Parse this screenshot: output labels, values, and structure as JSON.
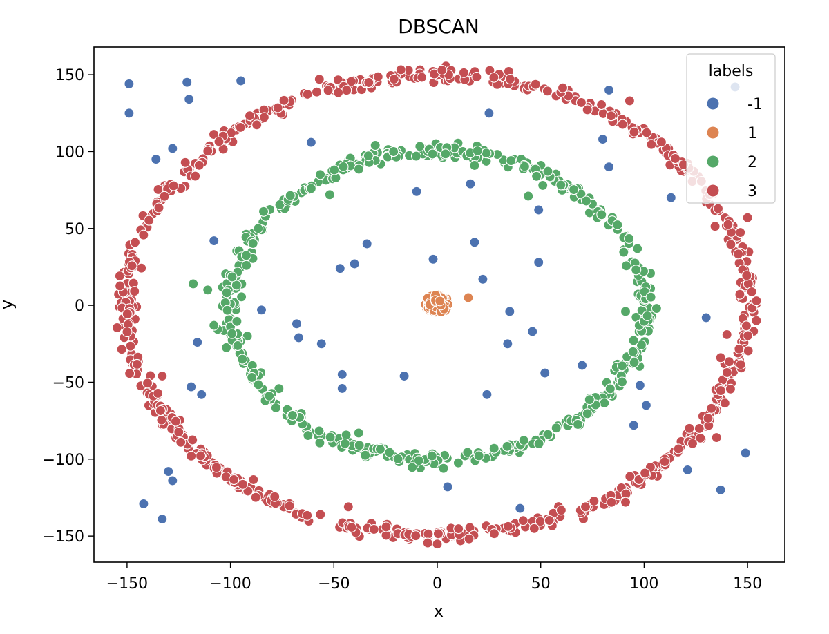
{
  "chart_data": {
    "type": "scatter",
    "title": "DBSCAN",
    "xlabel": "x",
    "ylabel": "y",
    "xlim": [
      -166,
      168
    ],
    "ylim": [
      -167,
      168
    ],
    "xticks": [
      -150,
      -100,
      -50,
      0,
      50,
      100,
      150
    ],
    "yticks": [
      -150,
      -100,
      -50,
      0,
      50,
      100,
      150
    ],
    "grid": false,
    "legend": {
      "title": "labels",
      "placement": "top-right",
      "entries": [
        {
          "label": "-1",
          "color": "#4c72b0"
        },
        {
          "label": "1",
          "color": "#dd8452"
        },
        {
          "label": "2",
          "color": "#55a868"
        },
        {
          "label": "3",
          "color": "#c44e52"
        }
      ]
    },
    "series": [
      {
        "name": "-1",
        "color": "#4c72b0",
        "kind": "points",
        "points": [
          [
            -149,
            144
          ],
          [
            -149,
            125
          ],
          [
            -121,
            145
          ],
          [
            -120,
            134
          ],
          [
            -95,
            146
          ],
          [
            -128,
            102
          ],
          [
            -136,
            95
          ],
          [
            -61,
            106
          ],
          [
            -108,
            42
          ],
          [
            -85,
            -3
          ],
          [
            -68,
            -12
          ],
          [
            -67,
            -21
          ],
          [
            -56,
            -25
          ],
          [
            -116,
            -24
          ],
          [
            -119,
            -53
          ],
          [
            -114,
            -58
          ],
          [
            -47,
            24
          ],
          [
            -40,
            27
          ],
          [
            -34,
            40
          ],
          [
            -10,
            74
          ],
          [
            -2,
            30
          ],
          [
            16,
            79
          ],
          [
            18,
            41
          ],
          [
            22,
            17
          ],
          [
            25,
            125
          ],
          [
            49,
            62
          ],
          [
            49,
            28
          ],
          [
            35,
            -4
          ],
          [
            34,
            -25
          ],
          [
            46,
            -17
          ],
          [
            52,
            -44
          ],
          [
            70,
            -39
          ],
          [
            24,
            -58
          ],
          [
            5,
            -118
          ],
          [
            40,
            -132
          ],
          [
            -46,
            -45
          ],
          [
            -46,
            -54
          ],
          [
            -16,
            -46
          ],
          [
            80,
            108
          ],
          [
            83,
            140
          ],
          [
            83,
            90
          ],
          [
            113,
            70
          ],
          [
            144,
            142
          ],
          [
            130,
            -8
          ],
          [
            98,
            -52
          ],
          [
            101,
            -65
          ],
          [
            95,
            -78
          ],
          [
            121,
            -107
          ],
          [
            137,
            -120
          ],
          [
            149,
            -96
          ],
          [
            -142,
            -129
          ],
          [
            -133,
            -139
          ],
          [
            -130,
            -108
          ],
          [
            -128,
            -114
          ]
        ]
      },
      {
        "name": "1",
        "color": "#dd8452",
        "kind": "blob",
        "center": [
          0,
          1
        ],
        "radius": 6,
        "count": 140,
        "points": [
          [
            15,
            5
          ]
        ]
      },
      {
        "name": "2",
        "color": "#55a868",
        "kind": "ring",
        "center": [
          0,
          0
        ],
        "rx": 100,
        "ry": 100,
        "count": 520,
        "jitter": 2.5,
        "points": [
          [
            -30,
            104
          ],
          [
            -52,
            72
          ],
          [
            44,
            71
          ],
          [
            51,
            78
          ],
          [
            18,
            91
          ],
          [
            -118,
            14
          ],
          [
            -111,
            10
          ],
          [
            -108,
            -13
          ],
          [
            106,
            -2
          ],
          [
            91,
            -4
          ],
          [
            -38,
            -83
          ],
          [
            3,
            -106
          ],
          [
            -84,
            61
          ],
          [
            -61,
            76
          ]
        ]
      },
      {
        "name": "3",
        "color": "#c44e52",
        "kind": "ring",
        "center": [
          0,
          0
        ],
        "rx": 150,
        "ry": 150,
        "count": 720,
        "jitter": 2.5,
        "points": [
          [
            -117,
            84
          ],
          [
            -133,
            -46
          ],
          [
            -119,
            -98
          ],
          [
            -43,
            -131
          ],
          [
            91,
            -128
          ],
          [
            137,
            -34
          ],
          [
            140,
            -19
          ],
          [
            135,
            -86
          ],
          [
            150,
            57
          ],
          [
            93,
            133
          ],
          [
            -57,
            147
          ]
        ]
      }
    ]
  }
}
